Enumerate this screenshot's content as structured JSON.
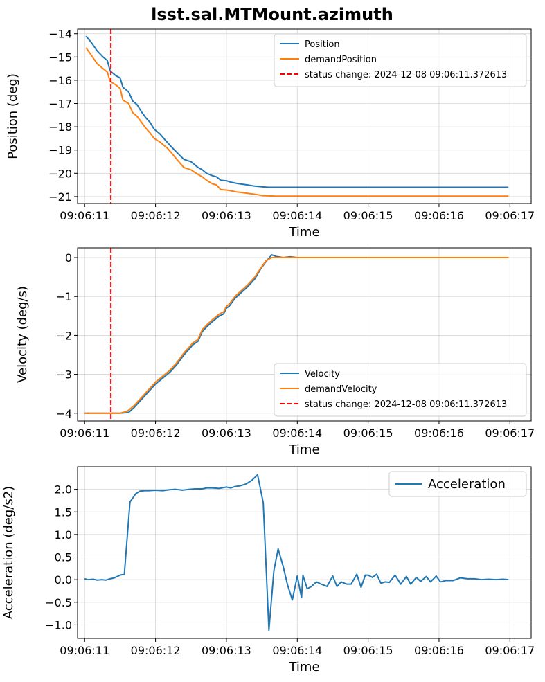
{
  "figure": {
    "title": "lsst.sal.MTMount.azimuth"
  },
  "chart_data": [
    {
      "type": "line",
      "xlabel": "Time",
      "ylabel": "Position (deg)",
      "xlim": [
        10.9,
        17.3
      ],
      "ylim": [
        -21.3,
        -13.8
      ],
      "xticks": [
        11,
        12,
        13,
        14,
        15,
        16,
        17
      ],
      "xtick_labels": [
        "09:06:11",
        "09:06:12",
        "09:06:13",
        "09:06:14",
        "09:06:15",
        "09:06:16",
        "09:06:17"
      ],
      "yticks": [
        -21,
        -20,
        -19,
        -18,
        -17,
        -16,
        -15,
        -14
      ],
      "ytick_labels": [
        "−21",
        "−20",
        "−19",
        "−18",
        "−17",
        "−16",
        "−15",
        "−14"
      ],
      "grid": true,
      "legend": "upper-right",
      "legend_size": "small",
      "series": [
        {
          "name": "Position",
          "color": "#1f77b4",
          "x": [
            11.02,
            11.1,
            11.18,
            11.26,
            11.32,
            11.36,
            11.44,
            11.5,
            11.54,
            11.62,
            11.68,
            11.74,
            11.8,
            11.86,
            11.92,
            11.98,
            12.06,
            12.16,
            12.22,
            12.3,
            12.4,
            12.5,
            12.6,
            12.66,
            12.72,
            12.8,
            12.86,
            12.92,
            13.0,
            13.06,
            13.14,
            13.2,
            13.3,
            13.4,
            13.5,
            13.6,
            13.7,
            13.8,
            14.0,
            14.5,
            15.0,
            15.5,
            16.0,
            16.5,
            16.98
          ],
          "y": [
            -14.1,
            -14.4,
            -14.75,
            -15.0,
            -15.15,
            -15.6,
            -15.8,
            -15.9,
            -16.3,
            -16.5,
            -16.9,
            -17.05,
            -17.35,
            -17.6,
            -17.8,
            -18.1,
            -18.3,
            -18.65,
            -18.85,
            -19.1,
            -19.4,
            -19.5,
            -19.75,
            -19.85,
            -20.0,
            -20.1,
            -20.15,
            -20.3,
            -20.32,
            -20.38,
            -20.43,
            -20.46,
            -20.5,
            -20.55,
            -20.58,
            -20.6,
            -20.6,
            -20.6,
            -20.6,
            -20.6,
            -20.6,
            -20.6,
            -20.6,
            -20.6,
            -20.6
          ]
        },
        {
          "name": "demandPosition",
          "color": "#ff7f0e",
          "x": [
            11.02,
            11.1,
            11.18,
            11.26,
            11.32,
            11.36,
            11.44,
            11.5,
            11.54,
            11.62,
            11.68,
            11.74,
            11.8,
            11.86,
            11.92,
            11.98,
            12.06,
            12.16,
            12.22,
            12.3,
            12.4,
            12.5,
            12.6,
            12.66,
            12.72,
            12.8,
            12.86,
            12.92,
            13.0,
            13.06,
            13.14,
            13.2,
            13.3,
            13.4,
            13.5,
            13.6,
            13.7,
            13.8,
            14.0,
            14.5,
            15.0,
            15.5,
            16.0,
            16.5,
            16.98
          ],
          "y": [
            -14.6,
            -14.95,
            -15.3,
            -15.5,
            -15.65,
            -16.05,
            -16.2,
            -16.35,
            -16.85,
            -17.0,
            -17.4,
            -17.55,
            -17.8,
            -18.05,
            -18.25,
            -18.5,
            -18.65,
            -18.9,
            -19.1,
            -19.4,
            -19.75,
            -19.85,
            -20.05,
            -20.15,
            -20.3,
            -20.45,
            -20.5,
            -20.7,
            -20.72,
            -20.75,
            -20.8,
            -20.82,
            -20.86,
            -20.9,
            -20.95,
            -20.97,
            -20.98,
            -20.98,
            -20.98,
            -20.98,
            -20.98,
            -20.98,
            -20.98,
            -20.98,
            -20.98
          ]
        },
        {
          "name": "status change: 2024-12-08 09:06:11.372613",
          "color": "#ff0000",
          "kind": "vline",
          "x_value": 11.37
        }
      ]
    },
    {
      "type": "line",
      "xlabel": "Time",
      "ylabel": "Velocity (deg/s)",
      "xlim": [
        10.9,
        17.3
      ],
      "ylim": [
        -4.2,
        0.25
      ],
      "xticks": [
        11,
        12,
        13,
        14,
        15,
        16,
        17
      ],
      "xtick_labels": [
        "09:06:11",
        "09:06:12",
        "09:06:13",
        "09:06:14",
        "09:06:15",
        "09:06:16",
        "09:06:17"
      ],
      "yticks": [
        -4,
        -3,
        -2,
        -1,
        0
      ],
      "ytick_labels": [
        "−4",
        "−3",
        "−2",
        "−1",
        "0"
      ],
      "grid": true,
      "legend": "lower-right",
      "legend_size": "small",
      "series": [
        {
          "name": "Velocity",
          "color": "#1f77b4",
          "x": [
            11.0,
            11.5,
            11.62,
            11.7,
            11.8,
            11.9,
            12.0,
            12.1,
            12.2,
            12.3,
            12.4,
            12.5,
            12.52,
            12.6,
            12.66,
            12.74,
            12.8,
            12.9,
            12.96,
            13.0,
            13.04,
            13.12,
            13.18,
            13.24,
            13.3,
            13.4,
            13.48,
            13.56,
            13.64,
            13.7,
            13.8,
            13.9,
            14.0,
            14.5,
            15.0,
            15.5,
            16.0,
            16.5,
            16.98
          ],
          "y": [
            -4.0,
            -4.0,
            -3.98,
            -3.85,
            -3.65,
            -3.45,
            -3.25,
            -3.1,
            -2.95,
            -2.75,
            -2.5,
            -2.3,
            -2.25,
            -2.15,
            -1.9,
            -1.75,
            -1.65,
            -1.5,
            -1.45,
            -1.3,
            -1.25,
            -1.05,
            -0.95,
            -0.85,
            -0.75,
            -0.55,
            -0.3,
            -0.1,
            0.07,
            0.03,
            0.0,
            0.02,
            0.0,
            0.0,
            0.0,
            0.0,
            0.0,
            0.0,
            0.0
          ]
        },
        {
          "name": "demandVelocity",
          "color": "#ff7f0e",
          "x": [
            11.0,
            11.5,
            11.6,
            11.7,
            11.8,
            11.9,
            12.0,
            12.1,
            12.2,
            12.3,
            12.4,
            12.5,
            12.52,
            12.6,
            12.66,
            12.74,
            12.8,
            12.9,
            12.96,
            13.0,
            13.04,
            13.12,
            13.18,
            13.24,
            13.3,
            13.4,
            13.48,
            13.56,
            13.64,
            13.7,
            13.8,
            14.0,
            14.5,
            15.0,
            15.5,
            16.0,
            16.5,
            16.98
          ],
          "y": [
            -4.0,
            -4.0,
            -3.95,
            -3.8,
            -3.6,
            -3.4,
            -3.2,
            -3.05,
            -2.9,
            -2.7,
            -2.45,
            -2.25,
            -2.2,
            -2.1,
            -1.85,
            -1.7,
            -1.6,
            -1.45,
            -1.4,
            -1.25,
            -1.2,
            -1.0,
            -0.9,
            -0.8,
            -0.7,
            -0.5,
            -0.28,
            -0.08,
            0.0,
            0.0,
            0.0,
            0.0,
            0.0,
            0.0,
            0.0,
            0.0,
            0.0,
            0.0
          ]
        },
        {
          "name": "status change: 2024-12-08 09:06:11.372613",
          "color": "#ff0000",
          "kind": "vline",
          "x_value": 11.37
        }
      ]
    },
    {
      "type": "line",
      "xlabel": "Time",
      "ylabel": "Acceleration (deg/s2)",
      "xlim": [
        10.9,
        17.3
      ],
      "ylim": [
        -1.3,
        2.5
      ],
      "xticks": [
        11,
        12,
        13,
        14,
        15,
        16,
        17
      ],
      "xtick_labels": [
        "09:06:11",
        "09:06:12",
        "09:06:13",
        "09:06:14",
        "09:06:15",
        "09:06:16",
        "09:06:17"
      ],
      "yticks": [
        -1.0,
        -0.5,
        0.0,
        0.5,
        1.0,
        1.5,
        2.0
      ],
      "ytick_labels": [
        "−1.0",
        "−0.5",
        "0.0",
        "0.5",
        "1.0",
        "1.5",
        "2.0"
      ],
      "grid": true,
      "legend": "upper-right",
      "legend_size": "large",
      "series": [
        {
          "name": "Acceleration",
          "color": "#1f77b4",
          "x": [
            11.0,
            11.05,
            11.12,
            11.18,
            11.24,
            11.3,
            11.36,
            11.42,
            11.5,
            11.56,
            11.64,
            11.72,
            11.78,
            11.85,
            11.9,
            12.0,
            12.1,
            12.2,
            12.28,
            12.38,
            12.48,
            12.56,
            12.66,
            12.72,
            12.8,
            12.9,
            13.0,
            13.06,
            13.12,
            13.2,
            13.28,
            13.36,
            13.44,
            13.52,
            13.6,
            13.67,
            13.73,
            13.8,
            13.86,
            13.93,
            14.0,
            14.06,
            14.08,
            14.14,
            14.2,
            14.27,
            14.34,
            14.42,
            14.5,
            14.56,
            14.62,
            14.7,
            14.76,
            14.84,
            14.9,
            14.96,
            15.0,
            15.06,
            15.12,
            15.18,
            15.24,
            15.3,
            15.38,
            15.46,
            15.54,
            15.6,
            15.68,
            15.74,
            15.82,
            15.88,
            15.96,
            16.02,
            16.1,
            16.2,
            16.3,
            16.4,
            16.5,
            16.6,
            16.7,
            16.8,
            16.9,
            16.98
          ],
          "y": [
            0.02,
            0.0,
            0.01,
            -0.01,
            0.0,
            -0.01,
            0.02,
            0.04,
            0.1,
            0.12,
            1.72,
            1.9,
            1.96,
            1.97,
            1.97,
            1.98,
            1.97,
            1.99,
            2.0,
            1.98,
            2.0,
            2.01,
            2.01,
            2.03,
            2.03,
            2.02,
            2.05,
            2.03,
            2.06,
            2.08,
            2.12,
            2.2,
            2.32,
            1.7,
            -1.12,
            0.2,
            0.68,
            0.3,
            -0.1,
            -0.45,
            0.08,
            -0.4,
            0.1,
            -0.2,
            -0.15,
            -0.05,
            -0.1,
            -0.15,
            0.08,
            -0.15,
            -0.05,
            -0.1,
            -0.1,
            0.12,
            -0.17,
            0.1,
            0.1,
            0.05,
            0.12,
            -0.08,
            -0.05,
            -0.06,
            0.1,
            -0.1,
            0.07,
            -0.1,
            0.05,
            -0.04,
            0.07,
            -0.05,
            0.08,
            -0.05,
            -0.02,
            -0.02,
            0.04,
            0.02,
            0.02,
            0.0,
            0.01,
            0.0,
            0.01,
            0.0
          ]
        }
      ]
    }
  ]
}
